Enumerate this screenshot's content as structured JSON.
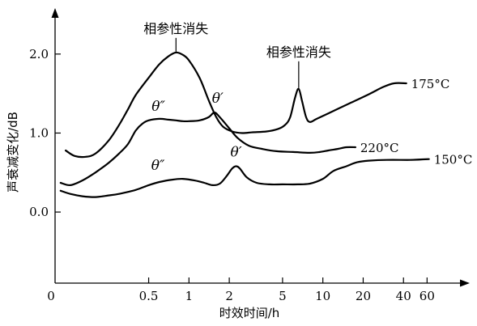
{
  "chart_data": {
    "type": "line",
    "title": "",
    "xlabel": "时效时间/h",
    "ylabel": "声衰减变化/dB",
    "x_scale": "log",
    "xlim": [
      0.1,
      80
    ],
    "ylim": [
      -0.9,
      2.5
    ],
    "x_ticks": [
      {
        "value": 0.5,
        "label": "0.5"
      },
      {
        "value": 1,
        "label": "1"
      },
      {
        "value": 2,
        "label": "2"
      },
      {
        "value": 5,
        "label": "5"
      },
      {
        "value": 10,
        "label": "10"
      },
      {
        "value": 20,
        "label": "20"
      },
      {
        "value": 40,
        "label": "40"
      },
      {
        "value": 60,
        "label": "60"
      }
    ],
    "x_origin_label": "0",
    "y_ticks": [
      {
        "value": 0,
        "label": "0.0"
      },
      {
        "value": 1,
        "label": "1.0"
      },
      {
        "value": 2,
        "label": "2.0"
      }
    ],
    "grid": false,
    "series": [
      {
        "name": "175°C",
        "points": [
          [
            0.12,
            0.78
          ],
          [
            0.14,
            0.71
          ],
          [
            0.17,
            0.7
          ],
          [
            0.2,
            0.74
          ],
          [
            0.25,
            0.9
          ],
          [
            0.3,
            1.1
          ],
          [
            0.35,
            1.3
          ],
          [
            0.4,
            1.48
          ],
          [
            0.5,
            1.7
          ],
          [
            0.6,
            1.87
          ],
          [
            0.7,
            1.97
          ],
          [
            0.8,
            2.02
          ],
          [
            0.9,
            1.99
          ],
          [
            1.0,
            1.92
          ],
          [
            1.2,
            1.7
          ],
          [
            1.4,
            1.42
          ],
          [
            1.6,
            1.2
          ],
          [
            1.8,
            1.08
          ],
          [
            2.1,
            1.02
          ],
          [
            2.5,
            1.0
          ],
          [
            3.0,
            1.01
          ],
          [
            3.8,
            1.02
          ],
          [
            4.6,
            1.05
          ],
          [
            5.2,
            1.1
          ],
          [
            5.7,
            1.2
          ],
          [
            6.2,
            1.45
          ],
          [
            6.6,
            1.56
          ],
          [
            7.0,
            1.4
          ],
          [
            7.5,
            1.2
          ],
          [
            8.0,
            1.14
          ],
          [
            9.0,
            1.18
          ],
          [
            12.0,
            1.28
          ],
          [
            16.0,
            1.38
          ],
          [
            22.0,
            1.49
          ],
          [
            28.0,
            1.58
          ],
          [
            34.0,
            1.63
          ],
          [
            42.0,
            1.63
          ]
        ]
      },
      {
        "name": "220°C",
        "points": [
          [
            0.11,
            0.37
          ],
          [
            0.13,
            0.34
          ],
          [
            0.16,
            0.4
          ],
          [
            0.2,
            0.5
          ],
          [
            0.25,
            0.62
          ],
          [
            0.3,
            0.74
          ],
          [
            0.35,
            0.86
          ],
          [
            0.4,
            1.03
          ],
          [
            0.45,
            1.12
          ],
          [
            0.5,
            1.16
          ],
          [
            0.6,
            1.18
          ],
          [
            0.7,
            1.17
          ],
          [
            0.8,
            1.16
          ],
          [
            0.9,
            1.15
          ],
          [
            1.0,
            1.15
          ],
          [
            1.2,
            1.16
          ],
          [
            1.4,
            1.2
          ],
          [
            1.55,
            1.26
          ],
          [
            1.7,
            1.2
          ],
          [
            2.0,
            1.06
          ],
          [
            2.3,
            0.94
          ],
          [
            2.8,
            0.84
          ],
          [
            3.5,
            0.8
          ],
          [
            4.5,
            0.77
          ],
          [
            6.0,
            0.76
          ],
          [
            8.0,
            0.75
          ],
          [
            9.5,
            0.76
          ],
          [
            11.0,
            0.78
          ],
          [
            13.0,
            0.8
          ],
          [
            15.0,
            0.82
          ],
          [
            17.5,
            0.82
          ]
        ]
      },
      {
        "name": "150°C",
        "points": [
          [
            0.11,
            0.27
          ],
          [
            0.13,
            0.23
          ],
          [
            0.16,
            0.2
          ],
          [
            0.2,
            0.19
          ],
          [
            0.25,
            0.21
          ],
          [
            0.3,
            0.23
          ],
          [
            0.4,
            0.28
          ],
          [
            0.5,
            0.34
          ],
          [
            0.6,
            0.38
          ],
          [
            0.75,
            0.41
          ],
          [
            0.9,
            0.42
          ],
          [
            1.1,
            0.4
          ],
          [
            1.3,
            0.37
          ],
          [
            1.5,
            0.34
          ],
          [
            1.7,
            0.36
          ],
          [
            1.9,
            0.45
          ],
          [
            2.1,
            0.55
          ],
          [
            2.25,
            0.58
          ],
          [
            2.4,
            0.55
          ],
          [
            2.7,
            0.44
          ],
          [
            3.2,
            0.37
          ],
          [
            4.0,
            0.35
          ],
          [
            5.0,
            0.35
          ],
          [
            6.5,
            0.35
          ],
          [
            8.0,
            0.36
          ],
          [
            10.0,
            0.42
          ],
          [
            12.0,
            0.52
          ],
          [
            15.0,
            0.58
          ],
          [
            18.0,
            0.63
          ],
          [
            22.0,
            0.65
          ],
          [
            30.0,
            0.66
          ],
          [
            45.0,
            0.66
          ],
          [
            62.0,
            0.67
          ]
        ]
      }
    ],
    "annotations": [
      {
        "id": "peak-175-main",
        "text": "相参性消失",
        "x": 0.8,
        "y": 2.02
      },
      {
        "id": "peak-175-second",
        "text": "相参性消失",
        "x": 6.6,
        "y": 1.56
      },
      {
        "id": "theta-dprime-upper",
        "text": "θ″",
        "x": 0.5,
        "y": 1.16
      },
      {
        "id": "theta-prime-upper",
        "text": "θ′",
        "x": 1.55,
        "y": 1.26
      },
      {
        "id": "theta-dprime-lower",
        "text": "θ″",
        "x": 0.62,
        "y": 0.41
      },
      {
        "id": "theta-prime-lower",
        "text": "θ′",
        "x": 2.25,
        "y": 0.58
      }
    ]
  }
}
